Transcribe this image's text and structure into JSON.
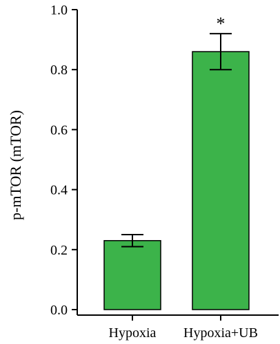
{
  "chart_data": {
    "type": "bar",
    "categories": [
      "Hypoxia",
      "Hypoxia+UB"
    ],
    "values": [
      0.23,
      0.86
    ],
    "errors": [
      0.02,
      0.06
    ],
    "annotations": [
      "",
      "*"
    ],
    "title": "",
    "xlabel": "",
    "ylabel": "p-mTOR (mTOR)",
    "ylim": [
      0,
      1.0
    ],
    "yticks": [
      0.0,
      0.2,
      0.4,
      0.6,
      0.8,
      1.0
    ],
    "ytick_labels": [
      "0.0",
      "0.2",
      "0.4",
      "0.6",
      "0.8",
      "1.0"
    ],
    "bar_color": "#3cb34a",
    "edge_color": "#000000",
    "grid": false,
    "legend": "none"
  }
}
